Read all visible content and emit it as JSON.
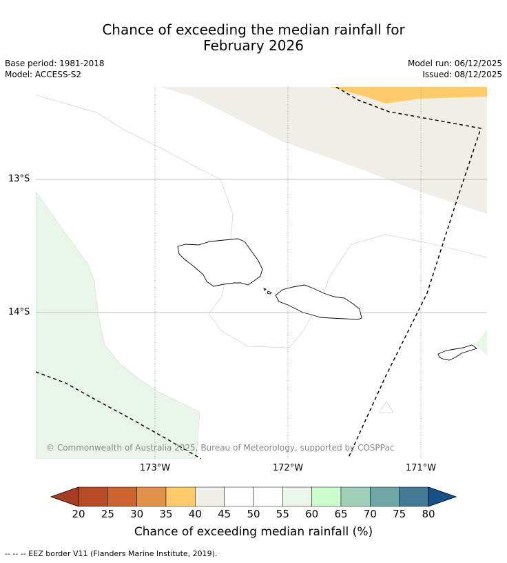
{
  "title": {
    "line1": "Chance of exceeding the median rainfall for",
    "line2": "February 2026"
  },
  "meta": {
    "base_period": "Base period: 1981-2018",
    "model": "Model: ACCESS-S2",
    "model_run": "Model run: 06/12/2025",
    "issued": "Issued: 08/12/2025"
  },
  "map": {
    "credit": "© Commonwealth of Australia 2025, Bureau of Meteorology, supported by COSPPac",
    "lon_labels": [
      "173°W",
      "172°W",
      "171°W"
    ],
    "lat_labels": [
      "13°S",
      "14°S"
    ],
    "category_colors": {
      "35-40": "#fdcb6a",
      "40-45": "#f1ede7",
      "55-60": "#e9f5e8"
    }
  },
  "colorbar": {
    "ticks": [
      "20",
      "25",
      "30",
      "35",
      "40",
      "45",
      "50",
      "55",
      "60",
      "65",
      "70",
      "75",
      "80"
    ],
    "colors": [
      "#a63d22",
      "#b84c26",
      "#cd6430",
      "#e0924a",
      "#fdcb6a",
      "#f1ede7",
      "#ffffff",
      "#ffffff",
      "#e9f5e8",
      "#ccfbcc",
      "#9fd0b7",
      "#6fa6a6",
      "#437a95",
      "#165088"
    ],
    "label": "Chance of exceeding median rainfall (%)"
  },
  "footnote": "--  --  -- EEZ border V11 (Flanders Marine Institute, 2019)."
}
